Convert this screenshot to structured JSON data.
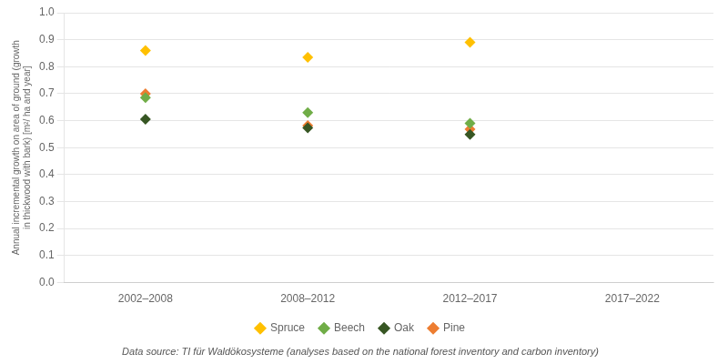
{
  "chart_data": {
    "type": "scatter",
    "categories": [
      "2002–2008",
      "2008–2012",
      "2012–2017",
      "2017–2022"
    ],
    "series": [
      {
        "name": "Spruce",
        "color": "#FFC000",
        "marker": "diamond",
        "values": [
          0.86,
          0.835,
          0.89,
          null
        ]
      },
      {
        "name": "Beech",
        "color": "#70AD47",
        "marker": "diamond",
        "values": [
          0.685,
          0.63,
          0.59,
          null
        ]
      },
      {
        "name": "Oak",
        "color": "#375623",
        "marker": "diamond",
        "values": [
          0.605,
          0.573,
          0.549,
          null
        ]
      },
      {
        "name": "Pine",
        "color": "#ED7D31",
        "marker": "diamond",
        "values": [
          0.7,
          0.582,
          0.568,
          null
        ]
      }
    ],
    "ylabel": "Annual incremental growth on area of ground (growth\nin thickwood with bark) [m²/ ha and year]",
    "ylim": [
      0.0,
      1.0
    ],
    "yticks": [
      {
        "value": 0,
        "label": "0.0"
      },
      0.1,
      0.2,
      0.3,
      0.4,
      0.5,
      0.6,
      0.7,
      0.8,
      0.9,
      {
        "value": 1,
        "label": "1.0"
      }
    ],
    "grid": true,
    "legend": "bottom",
    "annotations": [
      "Data source: TI für Waldökosysteme (analyses based on the national forest inventory and carbon inventory)"
    ]
  }
}
